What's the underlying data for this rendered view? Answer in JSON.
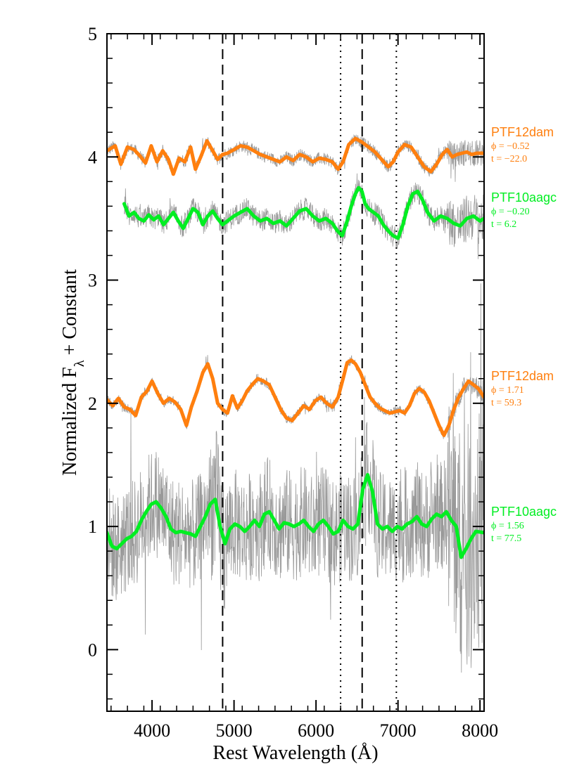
{
  "chart_data": {
    "type": "line",
    "title": "",
    "xlabel": "Rest Wavelength (Å)",
    "ylabel_main": "Normalized F",
    "ylabel_sub": "λ",
    "ylabel_rest": " + Constant",
    "xlim": [
      3450,
      8050
    ],
    "ylim": [
      -0.5,
      5
    ],
    "x_ticks": [
      4000,
      5000,
      6000,
      7000,
      8000
    ],
    "x_tick_labels": [
      "4000",
      "5000",
      "6000",
      "7000",
      "8000"
    ],
    "y_ticks": [
      0,
      1,
      2,
      3,
      4,
      5
    ],
    "y_tick_labels": [
      "0",
      "1",
      "2",
      "3",
      "4",
      "5"
    ],
    "grid": false,
    "colors": {
      "orange": "#ff7f0e",
      "green": "#00ee22",
      "raw": "#999999"
    },
    "vertical_lines": [
      {
        "x": 4861,
        "style": "dashed"
      },
      {
        "x": 6300,
        "style": "dotted"
      },
      {
        "x": 6563,
        "style": "dashed"
      },
      {
        "x": 6980,
        "style": "dotted"
      }
    ],
    "series": [
      {
        "name": "PTF12dam",
        "phase": "ϕ = −0.52",
        "time": "t = −22.0",
        "color": "#ff7f0e",
        "noise": 0.05,
        "x": [
          3450,
          3550,
          3620,
          3700,
          3780,
          3850,
          3920,
          3990,
          4060,
          4130,
          4200,
          4260,
          4330,
          4400,
          4470,
          4530,
          4600,
          4670,
          4740,
          4800,
          4860,
          4920,
          5000,
          5080,
          5160,
          5240,
          5320,
          5400,
          5480,
          5560,
          5640,
          5720,
          5800,
          5880,
          5960,
          6040,
          6120,
          6200,
          6270,
          6330,
          6400,
          6480,
          6560,
          6640,
          6720,
          6800,
          6880,
          6940,
          7000,
          7080,
          7160,
          7240,
          7320,
          7400,
          7470,
          7540,
          7600,
          7660,
          7720,
          7780,
          7840,
          7900,
          7960,
          8050
        ],
        "y": [
          4.05,
          4.09,
          3.94,
          4.08,
          4.06,
          4.01,
          3.95,
          4.09,
          3.96,
          4.05,
          3.98,
          3.86,
          3.99,
          3.96,
          4.08,
          3.9,
          4.01,
          4.13,
          4.05,
          3.98,
          4.02,
          4.03,
          4.06,
          4.09,
          4.08,
          4.05,
          4.02,
          4.0,
          3.98,
          3.96,
          4.0,
          3.97,
          4.02,
          4.0,
          3.96,
          3.99,
          3.98,
          3.96,
          3.9,
          3.96,
          4.1,
          4.15,
          4.12,
          4.08,
          4.04,
          3.98,
          3.92,
          3.96,
          4.04,
          4.1,
          4.08,
          4.0,
          3.92,
          3.88,
          3.94,
          4.02,
          4.06,
          4.0,
          4.02,
          4.03,
          4.04,
          4.02,
          4.03,
          4.03
        ]
      },
      {
        "name": "PTF10aagc",
        "phase": "ϕ = −0.20",
        "time": "t = 6.2",
        "color": "#00ee22",
        "noise": 0.09,
        "x": [
          3660,
          3720,
          3780,
          3840,
          3900,
          3960,
          4020,
          4080,
          4140,
          4200,
          4260,
          4320,
          4380,
          4440,
          4500,
          4560,
          4620,
          4680,
          4740,
          4800,
          4860,
          4920,
          5000,
          5080,
          5160,
          5240,
          5320,
          5400,
          5480,
          5560,
          5640,
          5720,
          5800,
          5880,
          5960,
          6040,
          6120,
          6200,
          6260,
          6320,
          6380,
          6430,
          6480,
          6520,
          6560,
          6600,
          6640,
          6700,
          6760,
          6820,
          6880,
          6940,
          7000,
          7060,
          7120,
          7180,
          7240,
          7300,
          7360,
          7440,
          7520,
          7600,
          7680,
          7760,
          7840,
          7920,
          8000,
          8050
        ],
        "y": [
          3.62,
          3.52,
          3.55,
          3.5,
          3.48,
          3.53,
          3.49,
          3.52,
          3.45,
          3.5,
          3.55,
          3.48,
          3.42,
          3.5,
          3.58,
          3.55,
          3.45,
          3.52,
          3.56,
          3.5,
          3.45,
          3.48,
          3.52,
          3.55,
          3.58,
          3.52,
          3.48,
          3.5,
          3.46,
          3.48,
          3.44,
          3.5,
          3.56,
          3.58,
          3.52,
          3.48,
          3.5,
          3.46,
          3.4,
          3.36,
          3.48,
          3.6,
          3.7,
          3.75,
          3.72,
          3.62,
          3.58,
          3.55,
          3.52,
          3.45,
          3.4,
          3.36,
          3.34,
          3.45,
          3.6,
          3.7,
          3.72,
          3.65,
          3.55,
          3.48,
          3.52,
          3.5,
          3.46,
          3.44,
          3.5,
          3.52,
          3.48,
          3.5
        ]
      },
      {
        "name": "PTF12dam",
        "phase": "ϕ = 1.71",
        "time": "t = 59.3",
        "color": "#ff7f0e",
        "noise": 0.04,
        "x": [
          3450,
          3520,
          3590,
          3660,
          3730,
          3800,
          3870,
          3940,
          4000,
          4070,
          4140,
          4210,
          4280,
          4350,
          4420,
          4480,
          4550,
          4620,
          4680,
          4740,
          4800,
          4860,
          4920,
          4980,
          5040,
          5100,
          5160,
          5220,
          5290,
          5360,
          5430,
          5500,
          5570,
          5640,
          5710,
          5780,
          5850,
          5920,
          5990,
          6060,
          6130,
          6200,
          6270,
          6330,
          6380,
          6430,
          6480,
          6540,
          6600,
          6660,
          6720,
          6780,
          6840,
          6900,
          6960,
          7020,
          7080,
          7140,
          7200,
          7260,
          7320,
          7380,
          7440,
          7500,
          7560,
          7620,
          7680,
          7740,
          7800,
          7860,
          7920,
          7980,
          8050
        ],
        "y": [
          2.03,
          1.98,
          2.04,
          1.97,
          1.95,
          1.9,
          2.05,
          2.1,
          2.18,
          2.08,
          2.0,
          2.04,
          2.01,
          1.95,
          1.82,
          1.97,
          2.1,
          2.25,
          2.32,
          2.2,
          2.0,
          1.95,
          1.92,
          2.06,
          1.96,
          2.02,
          2.1,
          2.15,
          2.2,
          2.18,
          2.15,
          2.05,
          1.95,
          1.88,
          1.86,
          1.92,
          1.98,
          1.95,
          2.02,
          2.05,
          2.0,
          1.97,
          2.05,
          2.2,
          2.33,
          2.35,
          2.32,
          2.25,
          2.15,
          2.05,
          2.0,
          1.96,
          1.94,
          1.92,
          1.93,
          1.94,
          1.92,
          1.98,
          2.08,
          2.12,
          2.09,
          2.02,
          1.92,
          1.82,
          1.74,
          1.82,
          1.95,
          2.05,
          2.12,
          2.18,
          2.15,
          2.12,
          2.05
        ]
      },
      {
        "name": "PTF10aagc",
        "phase": "ϕ = 1.56",
        "time": "t = 77.5",
        "color": "#00ee22",
        "noise": 0.45,
        "x": [
          3450,
          3510,
          3570,
          3630,
          3690,
          3750,
          3810,
          3870,
          3930,
          3990,
          4050,
          4110,
          4170,
          4230,
          4290,
          4350,
          4410,
          4470,
          4530,
          4590,
          4650,
          4710,
          4770,
          4830,
          4890,
          4950,
          5010,
          5070,
          5130,
          5190,
          5250,
          5310,
          5370,
          5430,
          5490,
          5550,
          5610,
          5670,
          5730,
          5790,
          5850,
          5910,
          5970,
          6030,
          6090,
          6150,
          6210,
          6270,
          6330,
          6390,
          6450,
          6510,
          6570,
          6630,
          6690,
          6750,
          6810,
          6870,
          6930,
          6990,
          7050,
          7110,
          7170,
          7230,
          7290,
          7350,
          7410,
          7470,
          7530,
          7590,
          7650,
          7710,
          7770,
          7830,
          7890,
          7950,
          8050
        ],
        "y": [
          0.95,
          0.84,
          0.82,
          0.86,
          0.9,
          0.92,
          0.96,
          1.05,
          1.12,
          1.18,
          1.2,
          1.15,
          1.08,
          0.98,
          0.95,
          0.96,
          0.95,
          0.94,
          0.92,
          1.0,
          1.08,
          1.18,
          1.22,
          1.0,
          0.86,
          0.98,
          1.02,
          1.0,
          0.96,
          1.0,
          1.05,
          1.0,
          1.1,
          1.12,
          1.05,
          0.98,
          1.03,
          1.02,
          1.0,
          1.02,
          1.05,
          1.0,
          0.96,
          1.02,
          1.05,
          1.0,
          0.94,
          0.96,
          1.05,
          1.0,
          0.98,
          1.02,
          1.3,
          1.42,
          1.28,
          1.02,
          0.98,
          1.0,
          0.96,
          1.0,
          0.98,
          1.02,
          1.04,
          1.08,
          1.02,
          1.0,
          1.06,
          1.1,
          1.08,
          1.12,
          1.05,
          1.0,
          0.75,
          0.82,
          0.9,
          0.96,
          0.95
        ]
      }
    ]
  }
}
